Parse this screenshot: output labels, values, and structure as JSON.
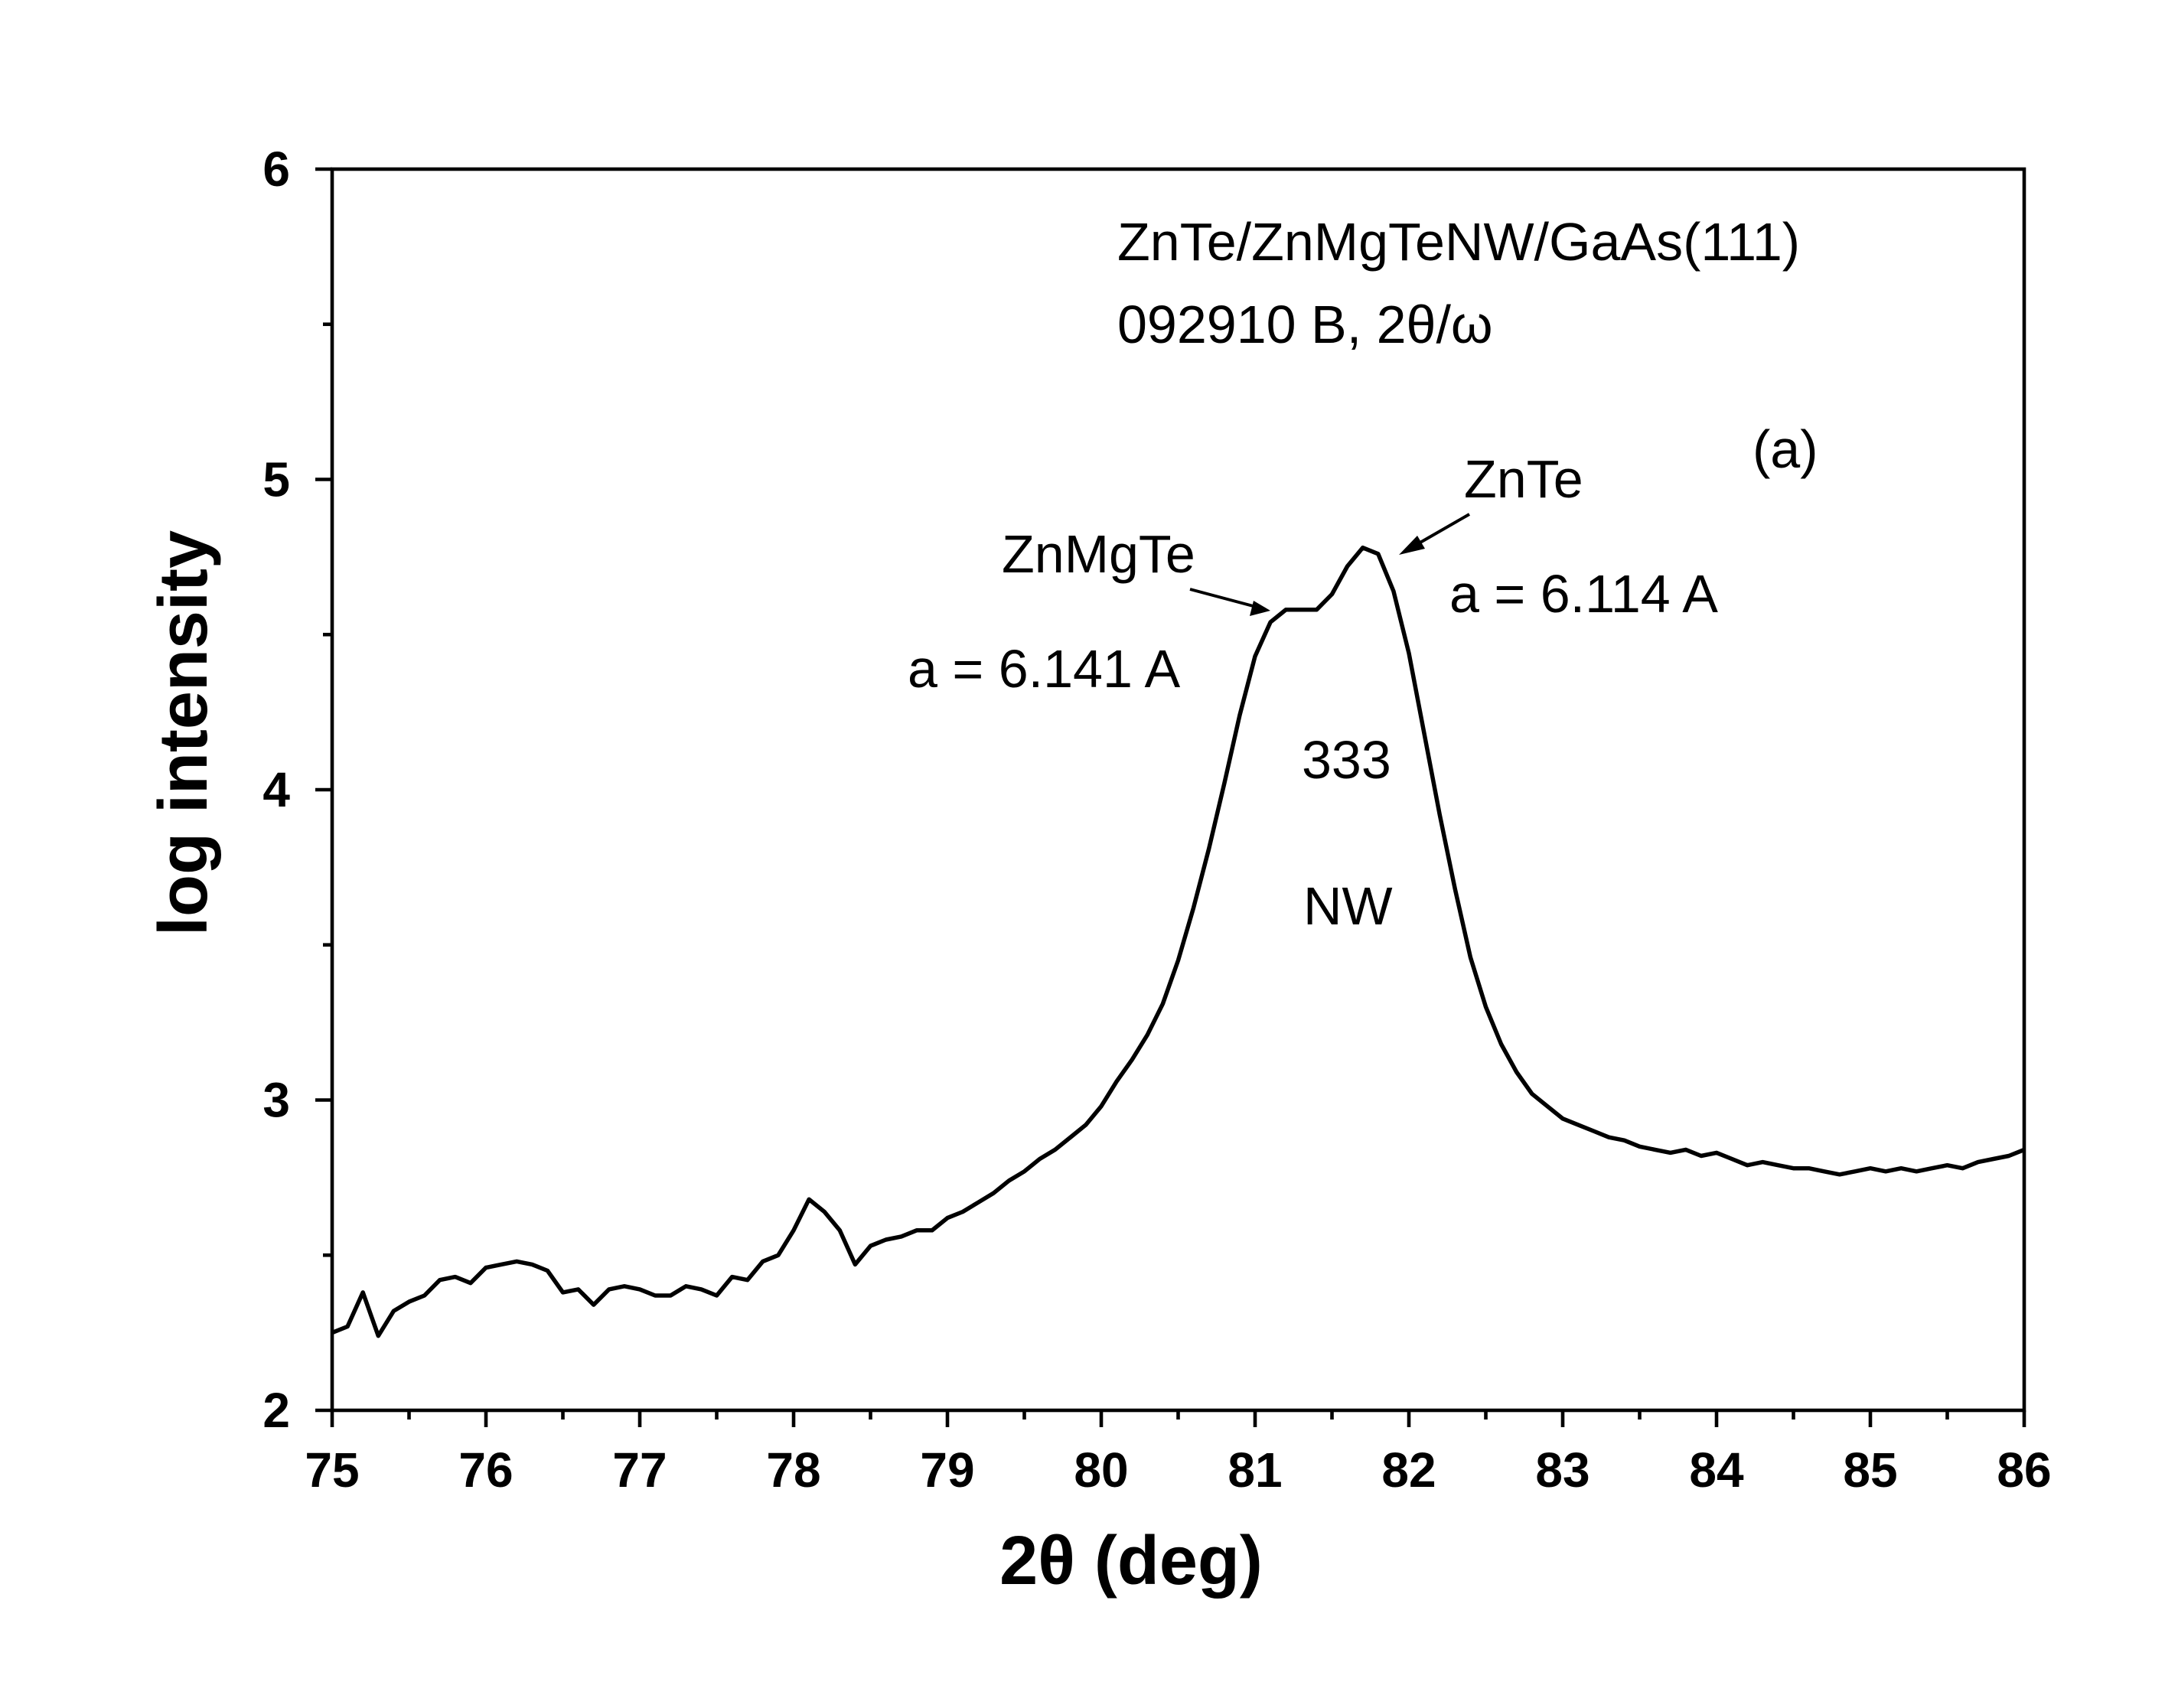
{
  "chart_data": {
    "type": "line",
    "x_label": "2θ (deg)",
    "y_label": "log intensity",
    "xlim": [
      75,
      86
    ],
    "ylim": [
      2,
      6
    ],
    "xticks": [
      75,
      76,
      77,
      78,
      79,
      80,
      81,
      82,
      83,
      84,
      85,
      86
    ],
    "yticks": [
      2,
      3,
      4,
      5,
      6
    ],
    "minor_xticks": [
      75.5,
      76.5,
      77.5,
      78.5,
      79.5,
      80.5,
      81.5,
      82.5,
      83.5,
      84.5,
      85.5
    ],
    "minor_yticks": [
      2.5,
      3.5,
      4.5,
      5.5
    ],
    "annotations": [
      "ZnTe/ZnMgTeNW/GaAs(111)",
      "092910 B, 2θ/ω",
      "(a)",
      "ZnTe",
      "ZnMgTe",
      "a = 6.114 A",
      "a = 6.141 A",
      "333",
      "NW"
    ],
    "x": [
      75.0,
      75.1,
      75.2,
      75.3,
      75.4,
      75.5,
      75.6,
      75.7,
      75.8,
      75.9,
      76.0,
      76.1,
      76.2,
      76.3,
      76.4,
      76.5,
      76.6,
      76.7,
      76.8,
      76.9,
      77.0,
      77.1,
      77.2,
      77.3,
      77.4,
      77.5,
      77.6,
      77.7,
      77.8,
      77.9,
      78.0,
      78.1,
      78.2,
      78.3,
      78.4,
      78.5,
      78.6,
      78.7,
      78.8,
      78.9,
      79.0,
      79.1,
      79.2,
      79.3,
      79.4,
      79.5,
      79.6,
      79.7,
      79.8,
      79.9,
      80.0,
      80.1,
      80.2,
      80.3,
      80.4,
      80.5,
      80.6,
      80.7,
      80.8,
      80.9,
      81.0,
      81.1,
      81.2,
      81.3,
      81.4,
      81.5,
      81.6,
      81.7,
      81.8,
      81.9,
      82.0,
      82.1,
      82.2,
      82.3,
      82.4,
      82.5,
      82.6,
      82.7,
      82.8,
      82.9,
      83.0,
      83.1,
      83.2,
      83.3,
      83.4,
      83.5,
      83.6,
      83.7,
      83.8,
      83.9,
      84.0,
      84.1,
      84.2,
      84.3,
      84.4,
      84.5,
      84.6,
      84.7,
      84.8,
      84.9,
      85.0,
      85.1,
      85.2,
      85.3,
      85.4,
      85.5,
      85.6,
      85.7,
      85.8,
      85.9,
      86.0
    ],
    "series": [
      {
        "color": "#000000",
        "values": [
          2.25,
          2.27,
          2.38,
          2.24,
          2.32,
          2.35,
          2.37,
          2.42,
          2.43,
          2.41,
          2.46,
          2.47,
          2.48,
          2.47,
          2.45,
          2.38,
          2.39,
          2.34,
          2.39,
          2.4,
          2.39,
          2.37,
          2.37,
          2.4,
          2.39,
          2.37,
          2.43,
          2.42,
          2.48,
          2.5,
          2.58,
          2.68,
          2.64,
          2.58,
          2.47,
          2.53,
          2.55,
          2.56,
          2.58,
          2.58,
          2.62,
          2.64,
          2.67,
          2.7,
          2.74,
          2.77,
          2.81,
          2.84,
          2.88,
          2.92,
          2.98,
          3.06,
          3.13,
          3.21,
          3.31,
          3.45,
          3.62,
          3.81,
          4.02,
          4.24,
          4.43,
          4.54,
          4.58,
          4.58,
          4.58,
          4.63,
          4.72,
          4.78,
          4.76,
          4.64,
          4.44,
          4.18,
          3.92,
          3.68,
          3.46,
          3.3,
          3.18,
          3.09,
          3.02,
          2.98,
          2.94,
          2.92,
          2.9,
          2.88,
          2.87,
          2.85,
          2.84,
          2.83,
          2.84,
          2.82,
          2.83,
          2.81,
          2.79,
          2.8,
          2.79,
          2.78,
          2.78,
          2.77,
          2.76,
          2.77,
          2.78,
          2.77,
          2.78,
          2.77,
          2.78,
          2.79,
          2.78,
          2.8,
          2.81,
          2.82,
          2.84
        ]
      }
    ]
  }
}
